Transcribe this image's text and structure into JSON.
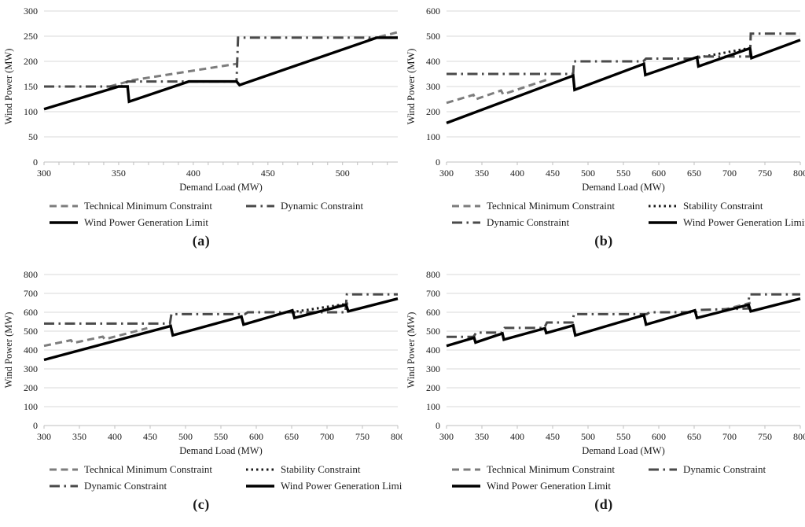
{
  "style": {
    "grid_color": "#d9d9d9",
    "axis_color": "#bfbfbf",
    "text_color": "#1a1a1a",
    "background": "#ffffff"
  },
  "series_styles": {
    "technical": {
      "label": "Technical Minimum Constraint",
      "color": "#7d7d7d",
      "dash": "9 5.5",
      "width": 3
    },
    "stability": {
      "label": "Stability Constraint",
      "color": "#1a1a1a",
      "dash": "2.5 4",
      "width": 3
    },
    "dynamic": {
      "label": "Dynamic Constraint",
      "color": "#4a4a4a",
      "dash": "13 5.5 2.5 5.5",
      "width": 3
    },
    "wind": {
      "label": "Wind Power Generation Limit",
      "color": "#000000",
      "dash": "",
      "width": 3.4
    }
  },
  "chart_data": [
    {
      "type": "line",
      "caption": "(a)",
      "xlabel": "Demand Load (MW)",
      "ylabel": "Wind Power (MW)",
      "xlim": [
        300,
        537
      ],
      "xticks": [
        300,
        350,
        400,
        450,
        500
      ],
      "tick_step": 10,
      "ylim": [
        0,
        300
      ],
      "yticks": [
        0,
        50,
        100,
        150,
        200,
        250,
        300
      ],
      "legend_rows": [
        [
          "technical",
          "dynamic"
        ],
        [
          "wind"
        ]
      ],
      "series": [
        {
          "key": "technical",
          "segments": [
            [
              [
                344,
                150
              ],
              [
                360,
                163
              ],
              [
                429,
                195
              ]
            ],
            [
              [
                517,
                243
              ],
              [
                537,
                258
              ]
            ]
          ]
        },
        {
          "key": "dynamic",
          "segments": [
            [
              [
                300,
                150
              ],
              [
                352,
                150
              ],
              [
                356,
                160
              ],
              [
                429,
                160
              ],
              [
                430,
                247
              ],
              [
                537,
                247
              ]
            ]
          ]
        },
        {
          "key": "wind",
          "segments": [
            [
              [
                300,
                105
              ],
              [
                350,
                150
              ],
              [
                356,
                150
              ],
              [
                357,
                120
              ],
              [
                397,
                160
              ],
              [
                429,
                160
              ],
              [
                431,
                153
              ],
              [
                523,
                247
              ],
              [
                537,
                247
              ]
            ]
          ]
        }
      ]
    },
    {
      "type": "line",
      "caption": "(b)",
      "xlabel": "Demand Load (MW)",
      "ylabel": "Wind Power (MW)",
      "xlim": [
        300,
        800
      ],
      "xticks": [
        300,
        350,
        400,
        450,
        500,
        550,
        600,
        650,
        700,
        750,
        800
      ],
      "tick_step": 50,
      "ylim": [
        0,
        600
      ],
      "yticks": [
        0,
        100,
        200,
        300,
        400,
        500,
        600
      ],
      "legend_rows": [
        [
          "technical",
          "stability"
        ],
        [
          "dynamic",
          "wind"
        ]
      ],
      "series": [
        {
          "key": "technical",
          "segments": [
            [
              [
                300,
                235
              ],
              [
                338,
                267
              ],
              [
                341,
                249
              ],
              [
                377,
                284
              ],
              [
                380,
                269
              ],
              [
                445,
                330
              ]
            ],
            [
              [
                700,
                421
              ],
              [
                729,
                454
              ]
            ]
          ]
        },
        {
          "key": "stability",
          "segments": [
            [
              [
                656,
                415
              ],
              [
                729,
                453
              ]
            ]
          ]
        },
        {
          "key": "dynamic",
          "segments": [
            [
              [
                300,
                350
              ],
              [
                479,
                350
              ],
              [
                480,
                400
              ],
              [
                578,
                400
              ],
              [
                582,
                411
              ],
              [
                653,
                411
              ],
              [
                657,
                419
              ],
              [
                729,
                419
              ],
              [
                730,
                510
              ],
              [
                800,
                510
              ]
            ]
          ]
        },
        {
          "key": "wind",
          "segments": [
            [
              [
                300,
                155
              ],
              [
                479,
                343
              ],
              [
                481,
                287
              ],
              [
                579,
                390
              ],
              [
                581,
                346
              ],
              [
                654,
                417
              ],
              [
                656,
                380
              ],
              [
                729,
                452
              ],
              [
                731,
                413
              ],
              [
                800,
                485
              ]
            ]
          ]
        }
      ]
    },
    {
      "type": "line",
      "caption": "(c)",
      "xlabel": "Demand Load (MW)",
      "ylabel": "Wind Power (MW)",
      "xlim": [
        300,
        800
      ],
      "xticks": [
        300,
        350,
        400,
        450,
        500,
        550,
        600,
        650,
        700,
        750,
        800
      ],
      "tick_step": 50,
      "ylim": [
        0,
        800
      ],
      "yticks": [
        0,
        100,
        200,
        300,
        400,
        500,
        600,
        700,
        800
      ],
      "legend_rows": [
        [
          "technical",
          "stability"
        ],
        [
          "dynamic",
          "wind"
        ]
      ],
      "series": [
        {
          "key": "technical",
          "segments": [
            [
              [
                300,
                422
              ],
              [
                338,
                452
              ],
              [
                341,
                437
              ],
              [
                383,
                471
              ],
              [
                386,
                457
              ],
              [
                446,
                516
              ]
            ],
            [
              [
                694,
                612
              ],
              [
                730,
                648
              ]
            ]
          ]
        },
        {
          "key": "stability",
          "segments": [
            [
              [
                657,
                604
              ],
              [
                729,
                645
              ]
            ]
          ]
        },
        {
          "key": "dynamic",
          "segments": [
            [
              [
                300,
                540
              ],
              [
                478,
                540
              ],
              [
                480,
                590
              ],
              [
                584,
                590
              ],
              [
                588,
                600
              ],
              [
                726,
                600
              ],
              [
                728,
                695
              ],
              [
                800,
                695
              ]
            ]
          ]
        },
        {
          "key": "wind",
          "segments": [
            [
              [
                300,
                348
              ],
              [
                479,
                527
              ],
              [
                482,
                478
              ],
              [
                579,
                577
              ],
              [
                582,
                535
              ],
              [
                651,
                610
              ],
              [
                654,
                570
              ],
              [
                727,
                640
              ],
              [
                730,
                605
              ],
              [
                800,
                672
              ]
            ]
          ]
        }
      ]
    },
    {
      "type": "line",
      "caption": "(d)",
      "xlabel": "Demand Load (MW)",
      "ylabel": "Wind Power (MW)",
      "xlim": [
        300,
        800
      ],
      "xticks": [
        300,
        350,
        400,
        450,
        500,
        550,
        600,
        650,
        700,
        750,
        800
      ],
      "tick_step": 50,
      "ylim": [
        0,
        800
      ],
      "yticks": [
        0,
        100,
        200,
        300,
        400,
        500,
        600,
        700,
        800
      ],
      "legend_rows": [
        [
          "technical",
          "dynamic"
        ],
        [
          "wind"
        ]
      ],
      "series": [
        {
          "key": "technical",
          "segments": [
            [
              [
                690,
                612
              ],
              [
                730,
                650
              ]
            ]
          ]
        },
        {
          "key": "dynamic",
          "segments": [
            [
              [
                300,
                470
              ],
              [
                338,
                470
              ],
              [
                342,
                492
              ],
              [
                378,
                492
              ],
              [
                382,
                517
              ],
              [
                438,
                517
              ],
              [
                442,
                546
              ],
              [
                478,
                546
              ],
              [
                480,
                590
              ],
              [
                583,
                590
              ],
              [
                587,
                600
              ],
              [
                652,
                600
              ],
              [
                656,
                612
              ],
              [
                726,
                620
              ],
              [
                728,
                695
              ],
              [
                800,
                695
              ]
            ]
          ]
        },
        {
          "key": "wind",
          "segments": [
            [
              [
                300,
                422
              ],
              [
                339,
                465
              ],
              [
                341,
                440
              ],
              [
                379,
                488
              ],
              [
                381,
                455
              ],
              [
                439,
                515
              ],
              [
                441,
                490
              ],
              [
                479,
                530
              ],
              [
                482,
                478
              ],
              [
                579,
                585
              ],
              [
                582,
                535
              ],
              [
                651,
                610
              ],
              [
                654,
                570
              ],
              [
                727,
                640
              ],
              [
                730,
                605
              ],
              [
                800,
                672
              ]
            ]
          ]
        }
      ]
    }
  ]
}
